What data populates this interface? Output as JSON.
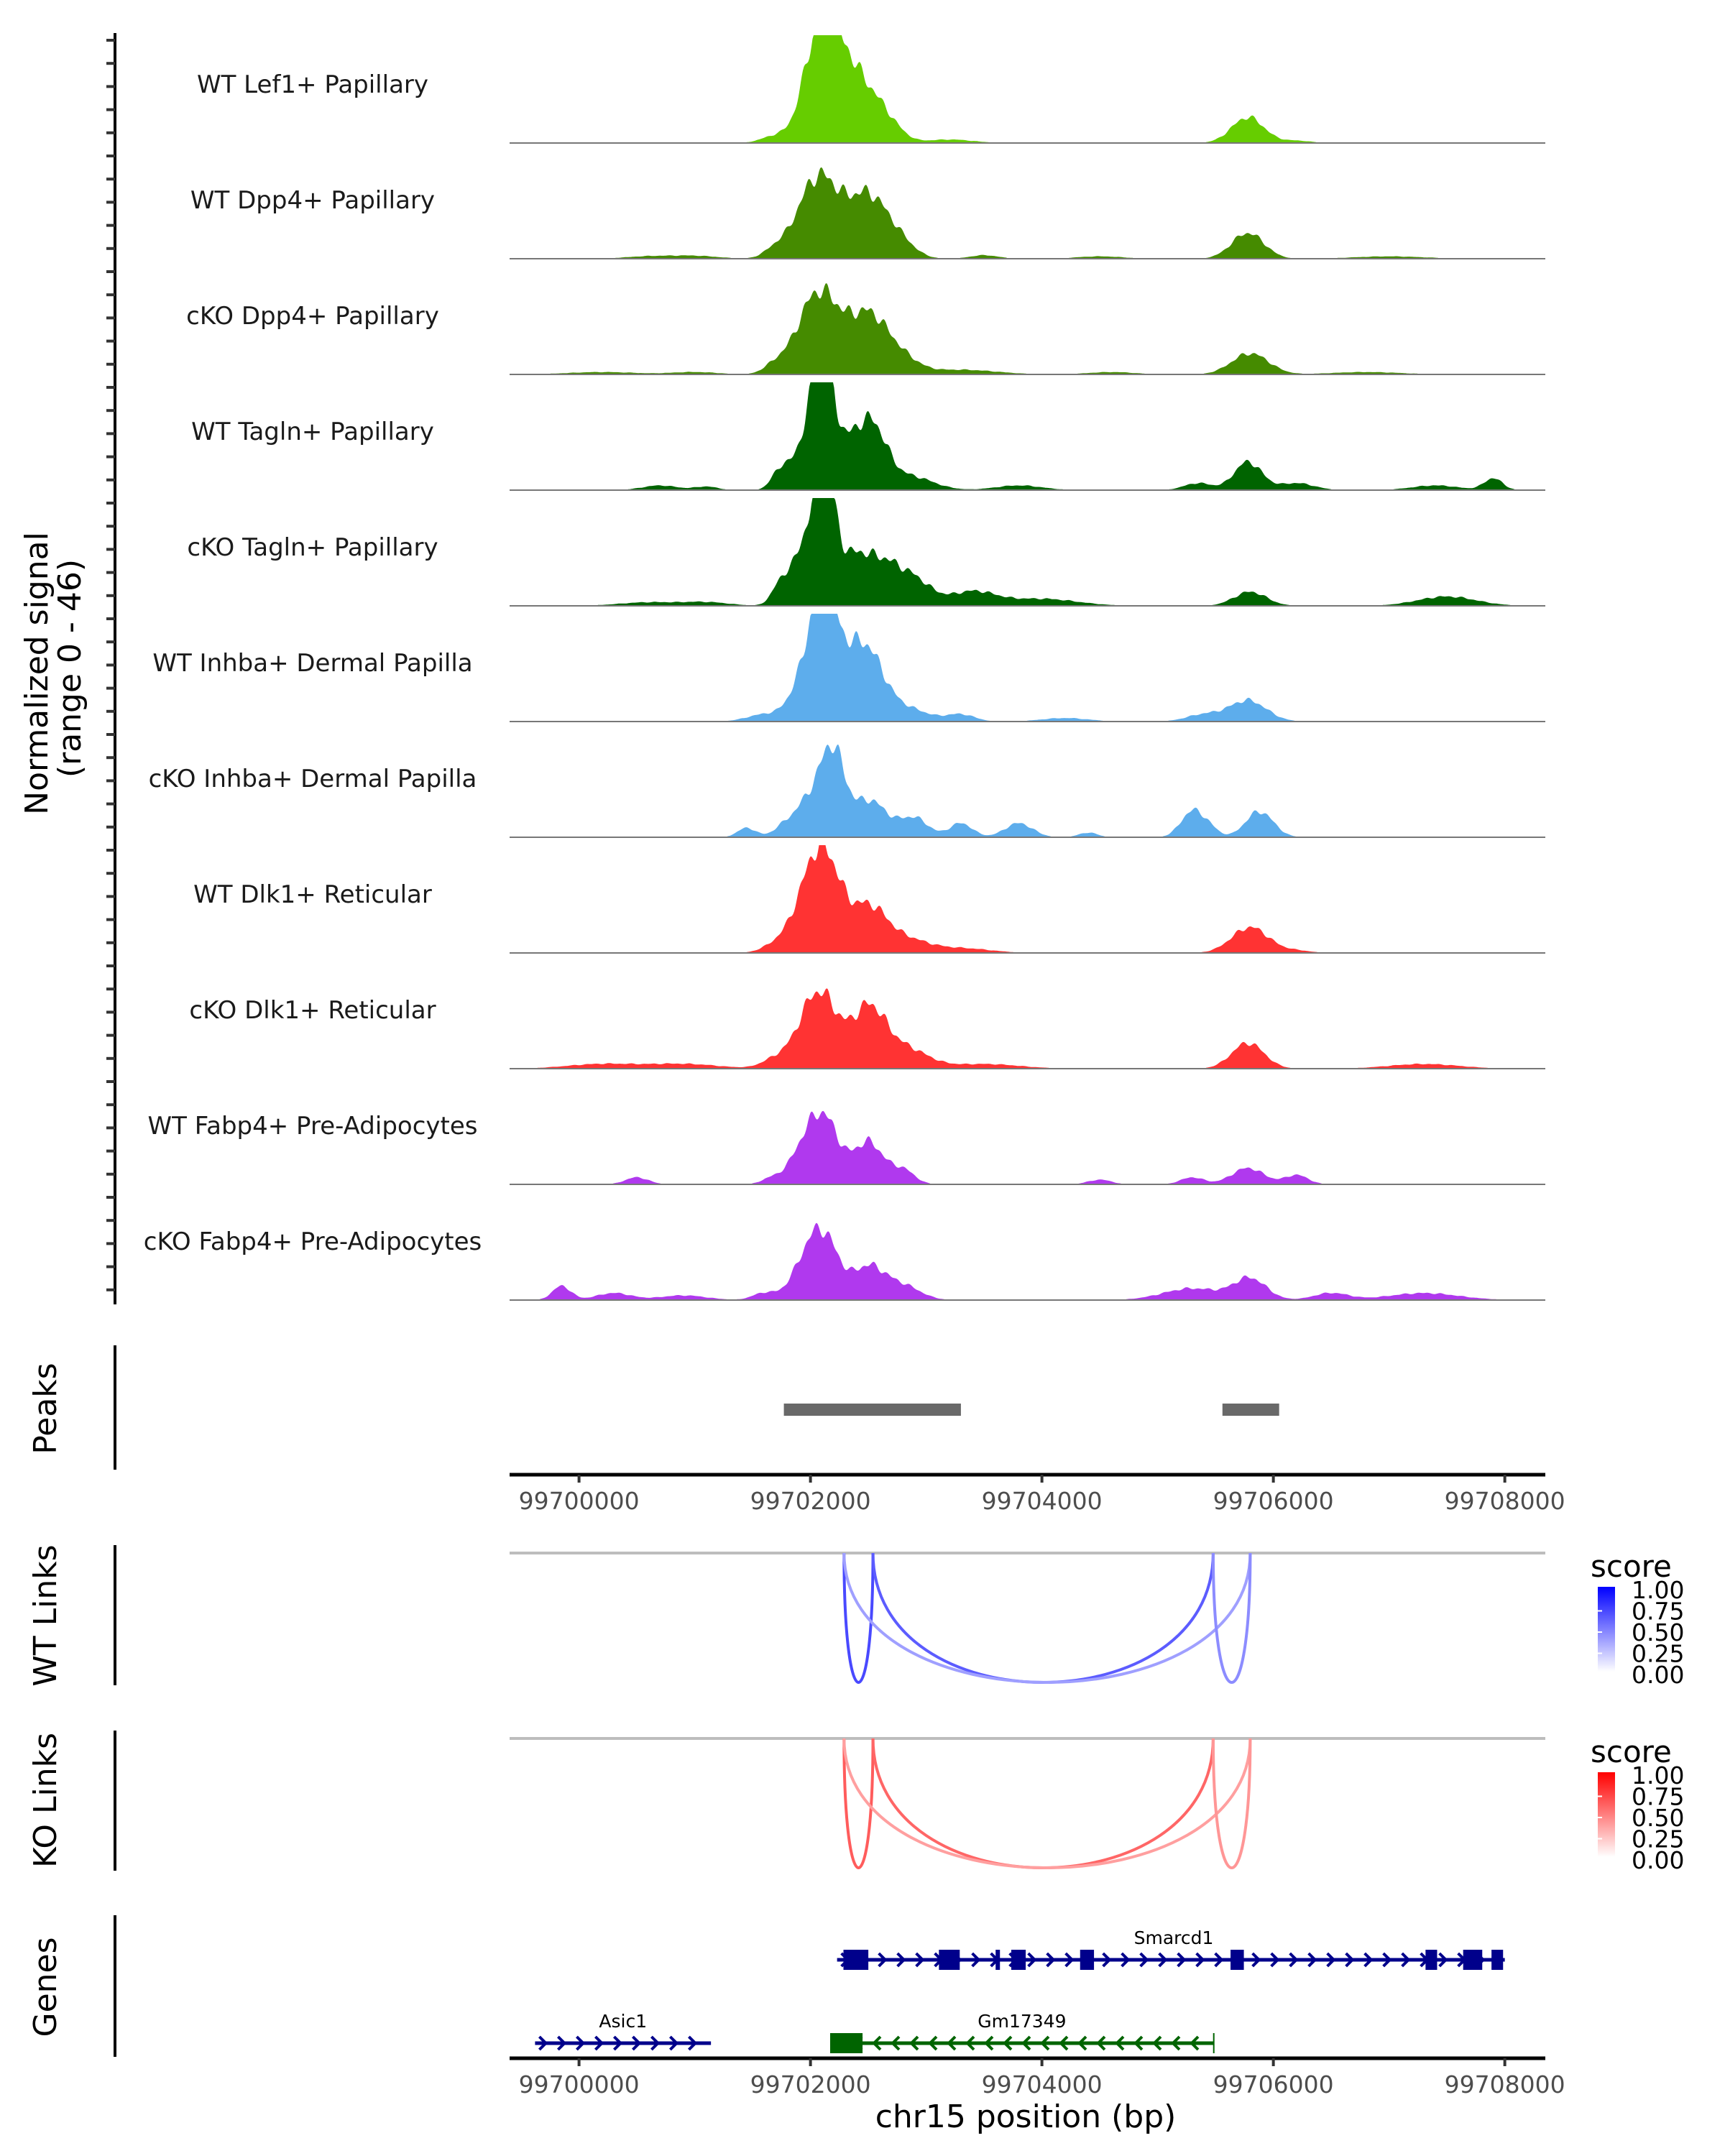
{
  "chart_data": {
    "type": "area",
    "title": "",
    "region": "chr15",
    "xlabel": "chr15 position (bp)",
    "xlim": [
      99699400,
      99708350
    ],
    "x_ticks": [
      99700000,
      99702000,
      99704000,
      99706000,
      99708000
    ],
    "x_tick_labels": [
      "99700000",
      "99702000",
      "99704000",
      "99706000",
      "99708000"
    ],
    "coverage": {
      "ylabel_line1": "Normalized signal",
      "ylabel_line2": "(range 0 - 46)",
      "ylim": [
        0,
        46
      ],
      "tracks": [
        {
          "name": "WT Lef1+ Papillary",
          "color": "#66CD00",
          "peaks": [
            [
              99701700,
              120,
              3
            ],
            [
              99702050,
              120,
              24
            ],
            [
              99702150,
              160,
              30
            ],
            [
              99702300,
              120,
              14
            ],
            [
              99702500,
              140,
              18
            ],
            [
              99702700,
              120,
              5
            ],
            [
              99703200,
              200,
              1.5
            ],
            [
              99705780,
              140,
              11
            ],
            [
              99706200,
              120,
              1
            ]
          ]
        },
        {
          "name": "WT Dpp4+ Papillary",
          "color": "#458B00",
          "peaks": [
            [
              99700600,
              200,
              1
            ],
            [
              99701000,
              200,
              1.2
            ],
            [
              99701700,
              100,
              4
            ],
            [
              99702000,
              150,
              22
            ],
            [
              99702180,
              160,
              20
            ],
            [
              99702500,
              150,
              24
            ],
            [
              99702750,
              140,
              8
            ],
            [
              99703500,
              120,
              1.5
            ],
            [
              99704500,
              200,
              1
            ],
            [
              99705780,
              140,
              11
            ],
            [
              99707000,
              300,
              1
            ]
          ]
        },
        {
          "name": "cKO Dpp4+ Papillary",
          "color": "#458B00",
          "peaks": [
            [
              99700200,
              300,
              1
            ],
            [
              99701000,
              200,
              1
            ],
            [
              99701700,
              100,
              4
            ],
            [
              99702000,
              150,
              22
            ],
            [
              99702180,
              160,
              20
            ],
            [
              99702500,
              150,
              22
            ],
            [
              99702750,
              160,
              8
            ],
            [
              99703300,
              300,
              2
            ],
            [
              99704600,
              200,
              1
            ],
            [
              99705800,
              160,
              9
            ],
            [
              99706800,
              300,
              1
            ]
          ]
        },
        {
          "name": "WT Tagln+ Papillary",
          "color": "#006400",
          "peaks": [
            [
              99700700,
              150,
              2
            ],
            [
              99701100,
              100,
              1.5
            ],
            [
              99701750,
              80,
              9
            ],
            [
              99702000,
              110,
              25
            ],
            [
              99702120,
              90,
              40
            ],
            [
              99702350,
              140,
              18
            ],
            [
              99702550,
              120,
              21
            ],
            [
              99702850,
              200,
              6
            ],
            [
              99703800,
              200,
              2
            ],
            [
              99705350,
              120,
              3
            ],
            [
              99705780,
              120,
              12
            ],
            [
              99706200,
              150,
              3
            ],
            [
              99707400,
              200,
              2
            ],
            [
              99707900,
              80,
              5
            ]
          ]
        },
        {
          "name": "cKO Tagln+ Papillary",
          "color": "#006400",
          "peaks": [
            [
              99700600,
              250,
              1.5
            ],
            [
              99701100,
              200,
              1.5
            ],
            [
              99701750,
              80,
              9
            ],
            [
              99702000,
              120,
              32
            ],
            [
              99702140,
              80,
              42
            ],
            [
              99702350,
              120,
              16
            ],
            [
              99702600,
              160,
              18
            ],
            [
              99702900,
              150,
              10
            ],
            [
              99703400,
              200,
              6
            ],
            [
              99704000,
              300,
              3
            ],
            [
              99705800,
              140,
              6
            ],
            [
              99707500,
              250,
              4
            ]
          ]
        },
        {
          "name": "WT Inhba+ Dermal Papilla",
          "color": "#5DADEC",
          "peaks": [
            [
              99701600,
              150,
              3
            ],
            [
              99702000,
              140,
              24
            ],
            [
              99702120,
              100,
              38
            ],
            [
              99702300,
              140,
              18
            ],
            [
              99702500,
              140,
              24
            ],
            [
              99702800,
              200,
              6
            ],
            [
              99703300,
              120,
              3
            ],
            [
              99704200,
              200,
              1.5
            ],
            [
              99705400,
              150,
              3
            ],
            [
              99705780,
              160,
              9
            ]
          ]
        },
        {
          "name": "cKO Inhba+ Dermal Papilla",
          "color": "#5DADEC",
          "peaks": [
            [
              99701450,
              80,
              4
            ],
            [
              99701800,
              100,
              6
            ],
            [
              99702000,
              100,
              16
            ],
            [
              99702150,
              80,
              24
            ],
            [
              99702250,
              80,
              18
            ],
            [
              99702500,
              160,
              16
            ],
            [
              99702900,
              120,
              8
            ],
            [
              99703300,
              100,
              6
            ],
            [
              99703800,
              120,
              6
            ],
            [
              99704400,
              80,
              2
            ],
            [
              99705300,
              100,
              11
            ],
            [
              99705450,
              80,
              3
            ],
            [
              99705880,
              120,
              11
            ]
          ]
        },
        {
          "name": "WT Dlk1+ Reticular",
          "color": "#FF3333",
          "peaks": [
            [
              99701700,
              120,
              3
            ],
            [
              99702000,
              150,
              24
            ],
            [
              99702150,
              140,
              28
            ],
            [
              99702500,
              150,
              18
            ],
            [
              99702800,
              200,
              6
            ],
            [
              99703300,
              250,
              2
            ],
            [
              99705800,
              160,
              11
            ],
            [
              99706200,
              120,
              1
            ]
          ]
        },
        {
          "name": "cKO Dlk1+ Reticular",
          "color": "#FF3333",
          "peaks": [
            [
              99700200,
              300,
              2
            ],
            [
              99700900,
              300,
              2
            ],
            [
              99701700,
              120,
              4
            ],
            [
              99702000,
              140,
              20
            ],
            [
              99702150,
              140,
              18
            ],
            [
              99702500,
              140,
              24
            ],
            [
              99702800,
              200,
              9
            ],
            [
              99703500,
              300,
              2
            ],
            [
              99705780,
              140,
              11
            ],
            [
              99707300,
              300,
              2
            ]
          ]
        },
        {
          "name": "WT Fabp4+ Pre-Adipocytes",
          "color": "#B039EE",
          "peaks": [
            [
              99700500,
              100,
              3
            ],
            [
              99701650,
              80,
              2
            ],
            [
              99702000,
              150,
              20
            ],
            [
              99702150,
              120,
              16
            ],
            [
              99702500,
              130,
              18
            ],
            [
              99702800,
              100,
              6
            ],
            [
              99704500,
              100,
              2
            ],
            [
              99705300,
              100,
              3
            ],
            [
              99705780,
              140,
              7
            ],
            [
              99706200,
              100,
              4
            ]
          ]
        },
        {
          "name": "cKO Fabp4+ Pre-Adipocytes",
          "color": "#B039EE",
          "peaks": [
            [
              99699850,
              80,
              6
            ],
            [
              99700300,
              150,
              3
            ],
            [
              99700900,
              200,
              2
            ],
            [
              99701600,
              100,
              3
            ],
            [
              99702000,
              140,
              20
            ],
            [
              99702150,
              120,
              16
            ],
            [
              99702500,
              140,
              14
            ],
            [
              99702800,
              150,
              6
            ],
            [
              99705300,
              250,
              5
            ],
            [
              99705800,
              140,
              9
            ],
            [
              99706500,
              150,
              3
            ],
            [
              99707300,
              300,
              3
            ]
          ]
        }
      ]
    },
    "peaks": {
      "label": "Peaks",
      "color": "#696969",
      "ranges": [
        [
          99701770,
          99703300
        ],
        [
          99705560,
          99706050
        ]
      ]
    },
    "links": [
      {
        "label": "WT Links",
        "legend_title": "score",
        "color_low": "#FFFFFF",
        "color_high": "#0000FF",
        "items": [
          {
            "start": 99702290,
            "end": 99702540,
            "score": 0.75
          },
          {
            "start": 99702540,
            "end": 99705480,
            "score": 0.65
          },
          {
            "start": 99702290,
            "end": 99705800,
            "score": 0.3
          },
          {
            "start": 99705480,
            "end": 99705800,
            "score": 0.4
          }
        ]
      },
      {
        "label": "KO Links",
        "legend_title": "score",
        "color_low": "#FFFFFF",
        "color_high": "#FF0000",
        "items": [
          {
            "start": 99702290,
            "end": 99702540,
            "score": 0.65
          },
          {
            "start": 99702540,
            "end": 99705480,
            "score": 0.6
          },
          {
            "start": 99702290,
            "end": 99705800,
            "score": 0.3
          },
          {
            "start": 99705480,
            "end": 99705800,
            "score": 0.35
          }
        ]
      }
    ],
    "legend_ticks": [
      "1.00",
      "0.75",
      "0.50",
      "0.25",
      "0.00"
    ],
    "genes": {
      "label": "Genes",
      "items": [
        {
          "name": "Smarcd1",
          "strand": "+",
          "color": "#00008B",
          "row": 0,
          "start": 99702230,
          "end": 99708000,
          "exons": [
            [
              99702285,
              99702500
            ],
            [
              99703110,
              99703290
            ],
            [
              99703600,
              99703635
            ],
            [
              99703735,
              99703860
            ],
            [
              99704330,
              99704450
            ],
            [
              99705630,
              99705745
            ],
            [
              99707315,
              99707415
            ],
            [
              99707640,
              99707805
            ],
            [
              99707885,
              99707985
            ]
          ]
        },
        {
          "name": "Asic1",
          "strand": "+",
          "color": "#00008B",
          "row": 1,
          "start": 99699620,
          "end": 99701140,
          "exons": []
        },
        {
          "name": "Gm17349",
          "strand": "-",
          "color": "#006400",
          "row": 1,
          "start": 99702170,
          "end": 99705485,
          "exons": [
            [
              99702170,
              99702450
            ]
          ]
        }
      ]
    }
  }
}
